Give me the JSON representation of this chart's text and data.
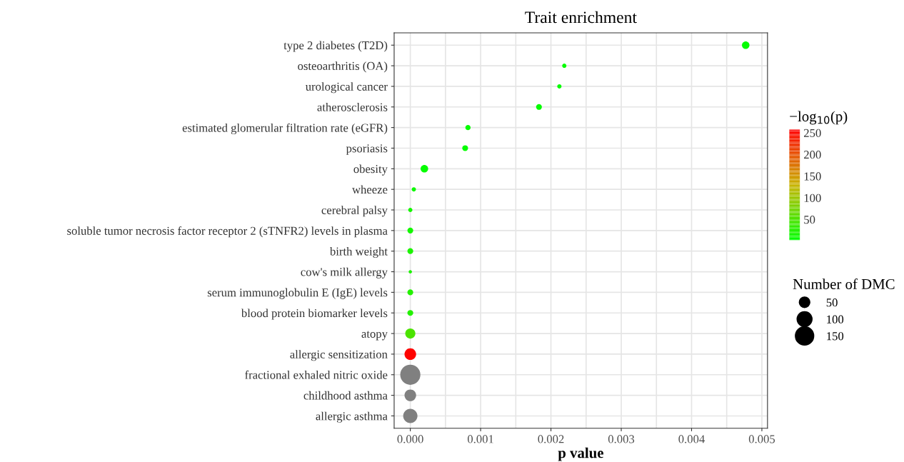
{
  "chart_data": {
    "type": "bubble",
    "orientation": "horizontal",
    "title": "Trait enrichment",
    "xlabel": "p value",
    "clabel": "−log$_{10}$(p)",
    "legend_title": "Number of DMC",
    "categories": [
      "type 2 diabetes (T2D)",
      "osteoarthritis (OA)",
      "urological cancer",
      "atherosclerosis",
      "estimated glomerular filtration rate (eGFR)",
      "psoriasis",
      "obesity",
      "wheeze",
      "cerebral palsy",
      "soluble tumor necrosis factor receptor 2 (sTNFR2) levels in plasma",
      "birth weight",
      "cow's milk allergy",
      "serum immunoglobulin E (IgE) levels",
      "blood protein biomarker levels",
      "atopy",
      "allergic sensitization",
      "fractional exhaled nitric oxide",
      "childhood asthma",
      "allergic asthma"
    ],
    "values": [
      0.00477,
      0.00219,
      0.00212,
      0.00183,
      0.00082,
      0.00078,
      0.0002,
      5e-05,
      0,
      0,
      0,
      0,
      0,
      0,
      0,
      0,
      0,
      0,
      0
    ],
    "sizes": [
      25,
      8,
      8,
      15,
      12,
      15,
      25,
      8,
      8,
      15,
      15,
      5,
      15,
      15,
      45,
      60,
      180,
      60,
      90
    ],
    "size_legend": [
      50,
      100,
      150
    ],
    "cvalues": [
      5,
      5,
      5,
      5,
      5,
      5,
      5,
      10,
      15,
      15,
      20,
      20,
      25,
      25,
      50,
      255,
      null,
      null,
      null
    ],
    "clim": [
      2,
      258
    ],
    "cticks": [
      50,
      100,
      150,
      200,
      250
    ],
    "xlim": [
      -0.00023,
      0.00508
    ],
    "xticks": [
      {
        "value": 0,
        "label": "0.000"
      },
      {
        "value": 0.001,
        "label": "0.001"
      },
      {
        "value": 0.002,
        "label": "0.002"
      },
      {
        "value": 0.003,
        "label": "0.003"
      },
      {
        "value": 0.004,
        "label": "0.004"
      },
      {
        "value": 0.005,
        "label": "0.005"
      }
    ],
    "grid": true
  }
}
